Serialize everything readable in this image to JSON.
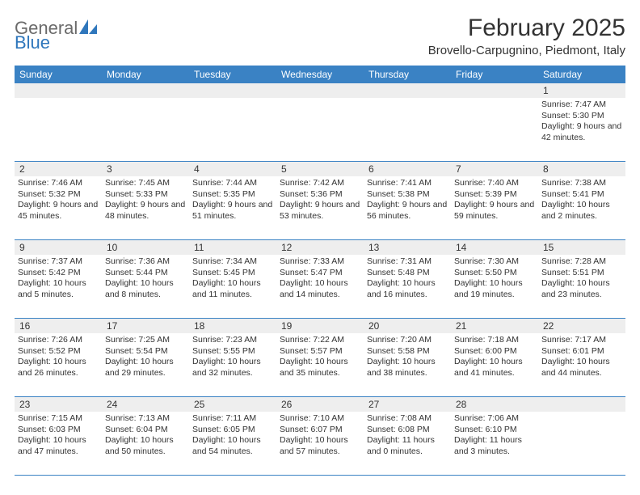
{
  "brand": {
    "word1": "General",
    "word2": "Blue"
  },
  "title": "February 2025",
  "location": "Brovello-Carpugnino, Piedmont, Italy",
  "colors": {
    "header_bg": "#3a82c4",
    "header_text": "#ffffff",
    "daynum_bg": "#eeeeee",
    "rule": "#3a82c4",
    "body_text": "#333333",
    "logo_gray": "#6a6a6a",
    "logo_blue": "#2f77bc"
  },
  "weekdays": [
    "Sunday",
    "Monday",
    "Tuesday",
    "Wednesday",
    "Thursday",
    "Friday",
    "Saturday"
  ],
  "weeks": [
    [
      {
        "n": "",
        "sr": "",
        "ss": "",
        "dl": ""
      },
      {
        "n": "",
        "sr": "",
        "ss": "",
        "dl": ""
      },
      {
        "n": "",
        "sr": "",
        "ss": "",
        "dl": ""
      },
      {
        "n": "",
        "sr": "",
        "ss": "",
        "dl": ""
      },
      {
        "n": "",
        "sr": "",
        "ss": "",
        "dl": ""
      },
      {
        "n": "",
        "sr": "",
        "ss": "",
        "dl": ""
      },
      {
        "n": "1",
        "sr": "Sunrise: 7:47 AM",
        "ss": "Sunset: 5:30 PM",
        "dl": "Daylight: 9 hours and 42 minutes."
      }
    ],
    [
      {
        "n": "2",
        "sr": "Sunrise: 7:46 AM",
        "ss": "Sunset: 5:32 PM",
        "dl": "Daylight: 9 hours and 45 minutes."
      },
      {
        "n": "3",
        "sr": "Sunrise: 7:45 AM",
        "ss": "Sunset: 5:33 PM",
        "dl": "Daylight: 9 hours and 48 minutes."
      },
      {
        "n": "4",
        "sr": "Sunrise: 7:44 AM",
        "ss": "Sunset: 5:35 PM",
        "dl": "Daylight: 9 hours and 51 minutes."
      },
      {
        "n": "5",
        "sr": "Sunrise: 7:42 AM",
        "ss": "Sunset: 5:36 PM",
        "dl": "Daylight: 9 hours and 53 minutes."
      },
      {
        "n": "6",
        "sr": "Sunrise: 7:41 AM",
        "ss": "Sunset: 5:38 PM",
        "dl": "Daylight: 9 hours and 56 minutes."
      },
      {
        "n": "7",
        "sr": "Sunrise: 7:40 AM",
        "ss": "Sunset: 5:39 PM",
        "dl": "Daylight: 9 hours and 59 minutes."
      },
      {
        "n": "8",
        "sr": "Sunrise: 7:38 AM",
        "ss": "Sunset: 5:41 PM",
        "dl": "Daylight: 10 hours and 2 minutes."
      }
    ],
    [
      {
        "n": "9",
        "sr": "Sunrise: 7:37 AM",
        "ss": "Sunset: 5:42 PM",
        "dl": "Daylight: 10 hours and 5 minutes."
      },
      {
        "n": "10",
        "sr": "Sunrise: 7:36 AM",
        "ss": "Sunset: 5:44 PM",
        "dl": "Daylight: 10 hours and 8 minutes."
      },
      {
        "n": "11",
        "sr": "Sunrise: 7:34 AM",
        "ss": "Sunset: 5:45 PM",
        "dl": "Daylight: 10 hours and 11 minutes."
      },
      {
        "n": "12",
        "sr": "Sunrise: 7:33 AM",
        "ss": "Sunset: 5:47 PM",
        "dl": "Daylight: 10 hours and 14 minutes."
      },
      {
        "n": "13",
        "sr": "Sunrise: 7:31 AM",
        "ss": "Sunset: 5:48 PM",
        "dl": "Daylight: 10 hours and 16 minutes."
      },
      {
        "n": "14",
        "sr": "Sunrise: 7:30 AM",
        "ss": "Sunset: 5:50 PM",
        "dl": "Daylight: 10 hours and 19 minutes."
      },
      {
        "n": "15",
        "sr": "Sunrise: 7:28 AM",
        "ss": "Sunset: 5:51 PM",
        "dl": "Daylight: 10 hours and 23 minutes."
      }
    ],
    [
      {
        "n": "16",
        "sr": "Sunrise: 7:26 AM",
        "ss": "Sunset: 5:52 PM",
        "dl": "Daylight: 10 hours and 26 minutes."
      },
      {
        "n": "17",
        "sr": "Sunrise: 7:25 AM",
        "ss": "Sunset: 5:54 PM",
        "dl": "Daylight: 10 hours and 29 minutes."
      },
      {
        "n": "18",
        "sr": "Sunrise: 7:23 AM",
        "ss": "Sunset: 5:55 PM",
        "dl": "Daylight: 10 hours and 32 minutes."
      },
      {
        "n": "19",
        "sr": "Sunrise: 7:22 AM",
        "ss": "Sunset: 5:57 PM",
        "dl": "Daylight: 10 hours and 35 minutes."
      },
      {
        "n": "20",
        "sr": "Sunrise: 7:20 AM",
        "ss": "Sunset: 5:58 PM",
        "dl": "Daylight: 10 hours and 38 minutes."
      },
      {
        "n": "21",
        "sr": "Sunrise: 7:18 AM",
        "ss": "Sunset: 6:00 PM",
        "dl": "Daylight: 10 hours and 41 minutes."
      },
      {
        "n": "22",
        "sr": "Sunrise: 7:17 AM",
        "ss": "Sunset: 6:01 PM",
        "dl": "Daylight: 10 hours and 44 minutes."
      }
    ],
    [
      {
        "n": "23",
        "sr": "Sunrise: 7:15 AM",
        "ss": "Sunset: 6:03 PM",
        "dl": "Daylight: 10 hours and 47 minutes."
      },
      {
        "n": "24",
        "sr": "Sunrise: 7:13 AM",
        "ss": "Sunset: 6:04 PM",
        "dl": "Daylight: 10 hours and 50 minutes."
      },
      {
        "n": "25",
        "sr": "Sunrise: 7:11 AM",
        "ss": "Sunset: 6:05 PM",
        "dl": "Daylight: 10 hours and 54 minutes."
      },
      {
        "n": "26",
        "sr": "Sunrise: 7:10 AM",
        "ss": "Sunset: 6:07 PM",
        "dl": "Daylight: 10 hours and 57 minutes."
      },
      {
        "n": "27",
        "sr": "Sunrise: 7:08 AM",
        "ss": "Sunset: 6:08 PM",
        "dl": "Daylight: 11 hours and 0 minutes."
      },
      {
        "n": "28",
        "sr": "Sunrise: 7:06 AM",
        "ss": "Sunset: 6:10 PM",
        "dl": "Daylight: 11 hours and 3 minutes."
      },
      {
        "n": "",
        "sr": "",
        "ss": "",
        "dl": ""
      }
    ]
  ]
}
